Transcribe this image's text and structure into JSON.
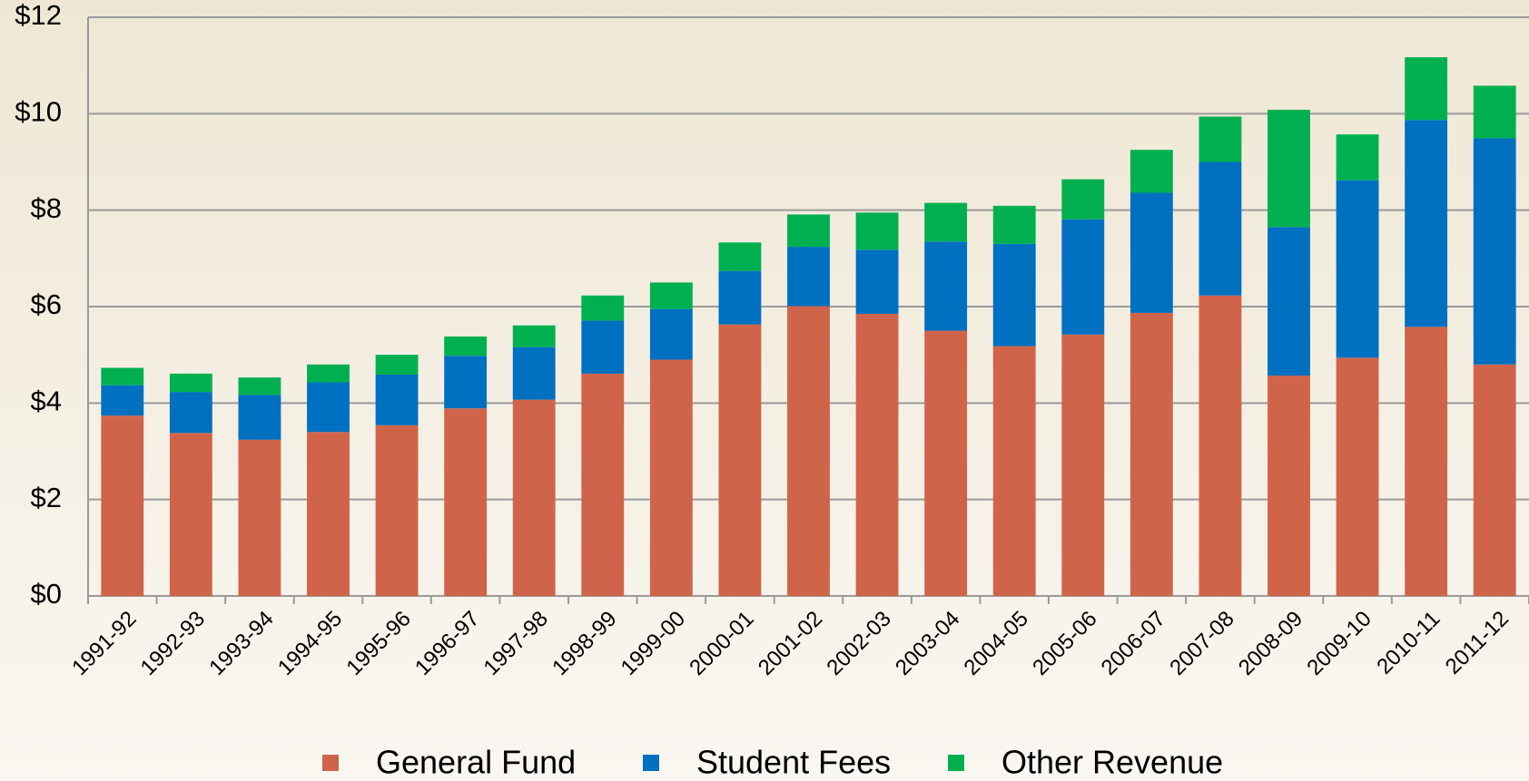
{
  "chart_data": {
    "type": "stacked_bar",
    "categories": [
      "1991-92",
      "1992-93",
      "1993-94",
      "1994-95",
      "1995-96",
      "1996-97",
      "1997-98",
      "1998-99",
      "1999-00",
      "2000-01",
      "2001-02",
      "2002-03",
      "2003-04",
      "2004-05",
      "2005-06",
      "2006-07",
      "2007-08",
      "2008-09",
      "2009-10",
      "2010-11",
      "2011-12"
    ],
    "series": [
      {
        "name": "General Fund",
        "color": "#d0644a",
        "values": [
          3.74,
          3.38,
          3.24,
          3.4,
          3.54,
          3.89,
          4.07,
          4.61,
          4.9,
          5.63,
          6.01,
          5.85,
          5.5,
          5.18,
          5.42,
          5.87,
          6.23,
          4.57,
          4.94,
          5.58,
          4.8
        ]
      },
      {
        "name": "Student Fees",
        "color": "#0070c0",
        "values": [
          0.63,
          0.85,
          0.93,
          1.03,
          1.05,
          1.09,
          1.09,
          1.1,
          1.05,
          1.11,
          1.23,
          1.33,
          1.85,
          2.12,
          2.39,
          2.49,
          2.77,
          3.08,
          3.68,
          4.29,
          4.69
        ]
      },
      {
        "name": "Other Revenue",
        "color": "#00b050",
        "values": [
          0.36,
          0.38,
          0.36,
          0.37,
          0.41,
          0.4,
          0.45,
          0.52,
          0.55,
          0.59,
          0.67,
          0.77,
          0.8,
          0.79,
          0.83,
          0.89,
          0.94,
          2.43,
          0.95,
          1.3,
          1.09
        ]
      }
    ],
    "ylim": [
      0,
      12
    ],
    "yticks": [
      {
        "value": 0,
        "label": "$0"
      },
      {
        "value": 2,
        "label": "$2"
      },
      {
        "value": 4,
        "label": "$4"
      },
      {
        "value": 6,
        "label": "$6"
      },
      {
        "value": 8,
        "label": "$8"
      },
      {
        "value": 10,
        "label": "$10"
      },
      {
        "value": 12,
        "label": "$12"
      }
    ],
    "grid": true,
    "legend": "bottom"
  }
}
